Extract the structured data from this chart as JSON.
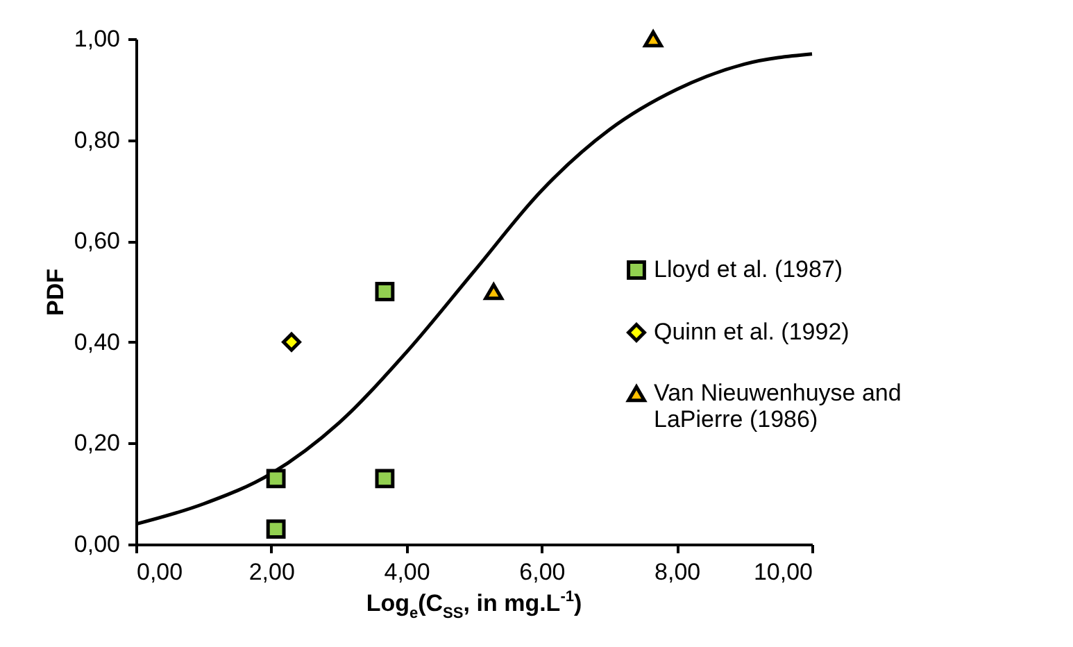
{
  "chart_data": {
    "type": "scatter",
    "xlabel": "Log$_{e}$(C$_{SS}$, in mg.L$^{-1}$)",
    "ylabel": "PDF",
    "xlim": [
      0,
      10
    ],
    "ylim": [
      0,
      1
    ],
    "xticks": [
      {
        "value": 0,
        "label": "0,00"
      },
      {
        "value": 2,
        "label": "2,00"
      },
      {
        "value": 4,
        "label": "4,00"
      },
      {
        "value": 6,
        "label": "6,00"
      },
      {
        "value": 8,
        "label": "8,00"
      },
      {
        "value": 10,
        "label": "10,00"
      }
    ],
    "yticks": [
      {
        "value": 0,
        "label": "0,00"
      },
      {
        "value": 0.2,
        "label": "0,20"
      },
      {
        "value": 0.4,
        "label": "0,40"
      },
      {
        "value": 0.6,
        "label": "0,60"
      },
      {
        "value": 0.8,
        "label": "0,80"
      },
      {
        "value": 1,
        "label": "1,00"
      }
    ],
    "grid": false,
    "legend": "right",
    "series": [
      {
        "name": "Lloyd et al. (1987)",
        "color": "#92d050",
        "marker": "square",
        "x": [
          2.07,
          2.07,
          3.68,
          3.68
        ],
        "values": [
          0.13,
          0.03,
          0.5,
          0.13
        ]
      },
      {
        "name": "Quinn et al. (1992)",
        "color": "#ffff00",
        "marker": "diamond",
        "x": [
          2.3
        ],
        "values": [
          0.4
        ]
      },
      {
        "name": "Van Nieuwenhuyse and LaPierre (1986)",
        "color": "#ffc000",
        "marker": "triangle",
        "x": [
          5.29,
          7.65
        ],
        "values": [
          0.5,
          1.0
        ]
      },
      {
        "type": "line",
        "color": "#000000",
        "marker": "none",
        "x": [
          0,
          1,
          2,
          3,
          4,
          5,
          6,
          7,
          8,
          9,
          10
        ],
        "values": [
          0.04,
          0.08,
          0.14,
          0.24,
          0.38,
          0.54,
          0.7,
          0.82,
          0.9,
          0.95,
          0.97
        ]
      }
    ]
  }
}
